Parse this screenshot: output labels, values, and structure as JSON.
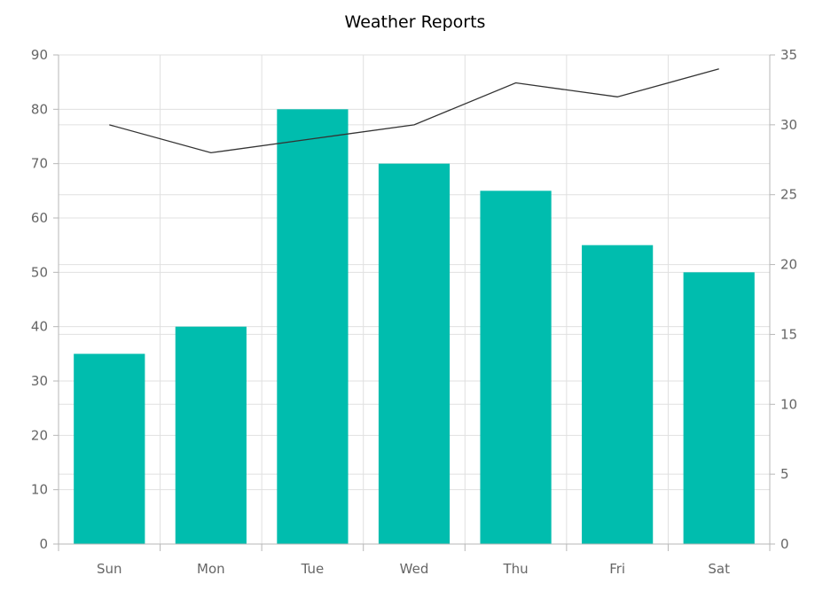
{
  "chart_data": {
    "type": "bar",
    "title": "Weather Reports",
    "categories": [
      "Sun",
      "Mon",
      "Tue",
      "Wed",
      "Thu",
      "Fri",
      "Sat"
    ],
    "series": [
      {
        "type": "bar",
        "axis": "left",
        "values": [
          35,
          40,
          80,
          70,
          65,
          55,
          50
        ],
        "color": "#00bdae"
      },
      {
        "type": "line",
        "axis": "right",
        "values": [
          30,
          28,
          29,
          30,
          33,
          32,
          34
        ],
        "color": "#333333"
      }
    ],
    "y_left": {
      "min": 0,
      "max": 90,
      "interval": 10
    },
    "y_right": {
      "min": 0,
      "max": 35,
      "interval": 5
    },
    "grid": true,
    "legend": "none"
  }
}
